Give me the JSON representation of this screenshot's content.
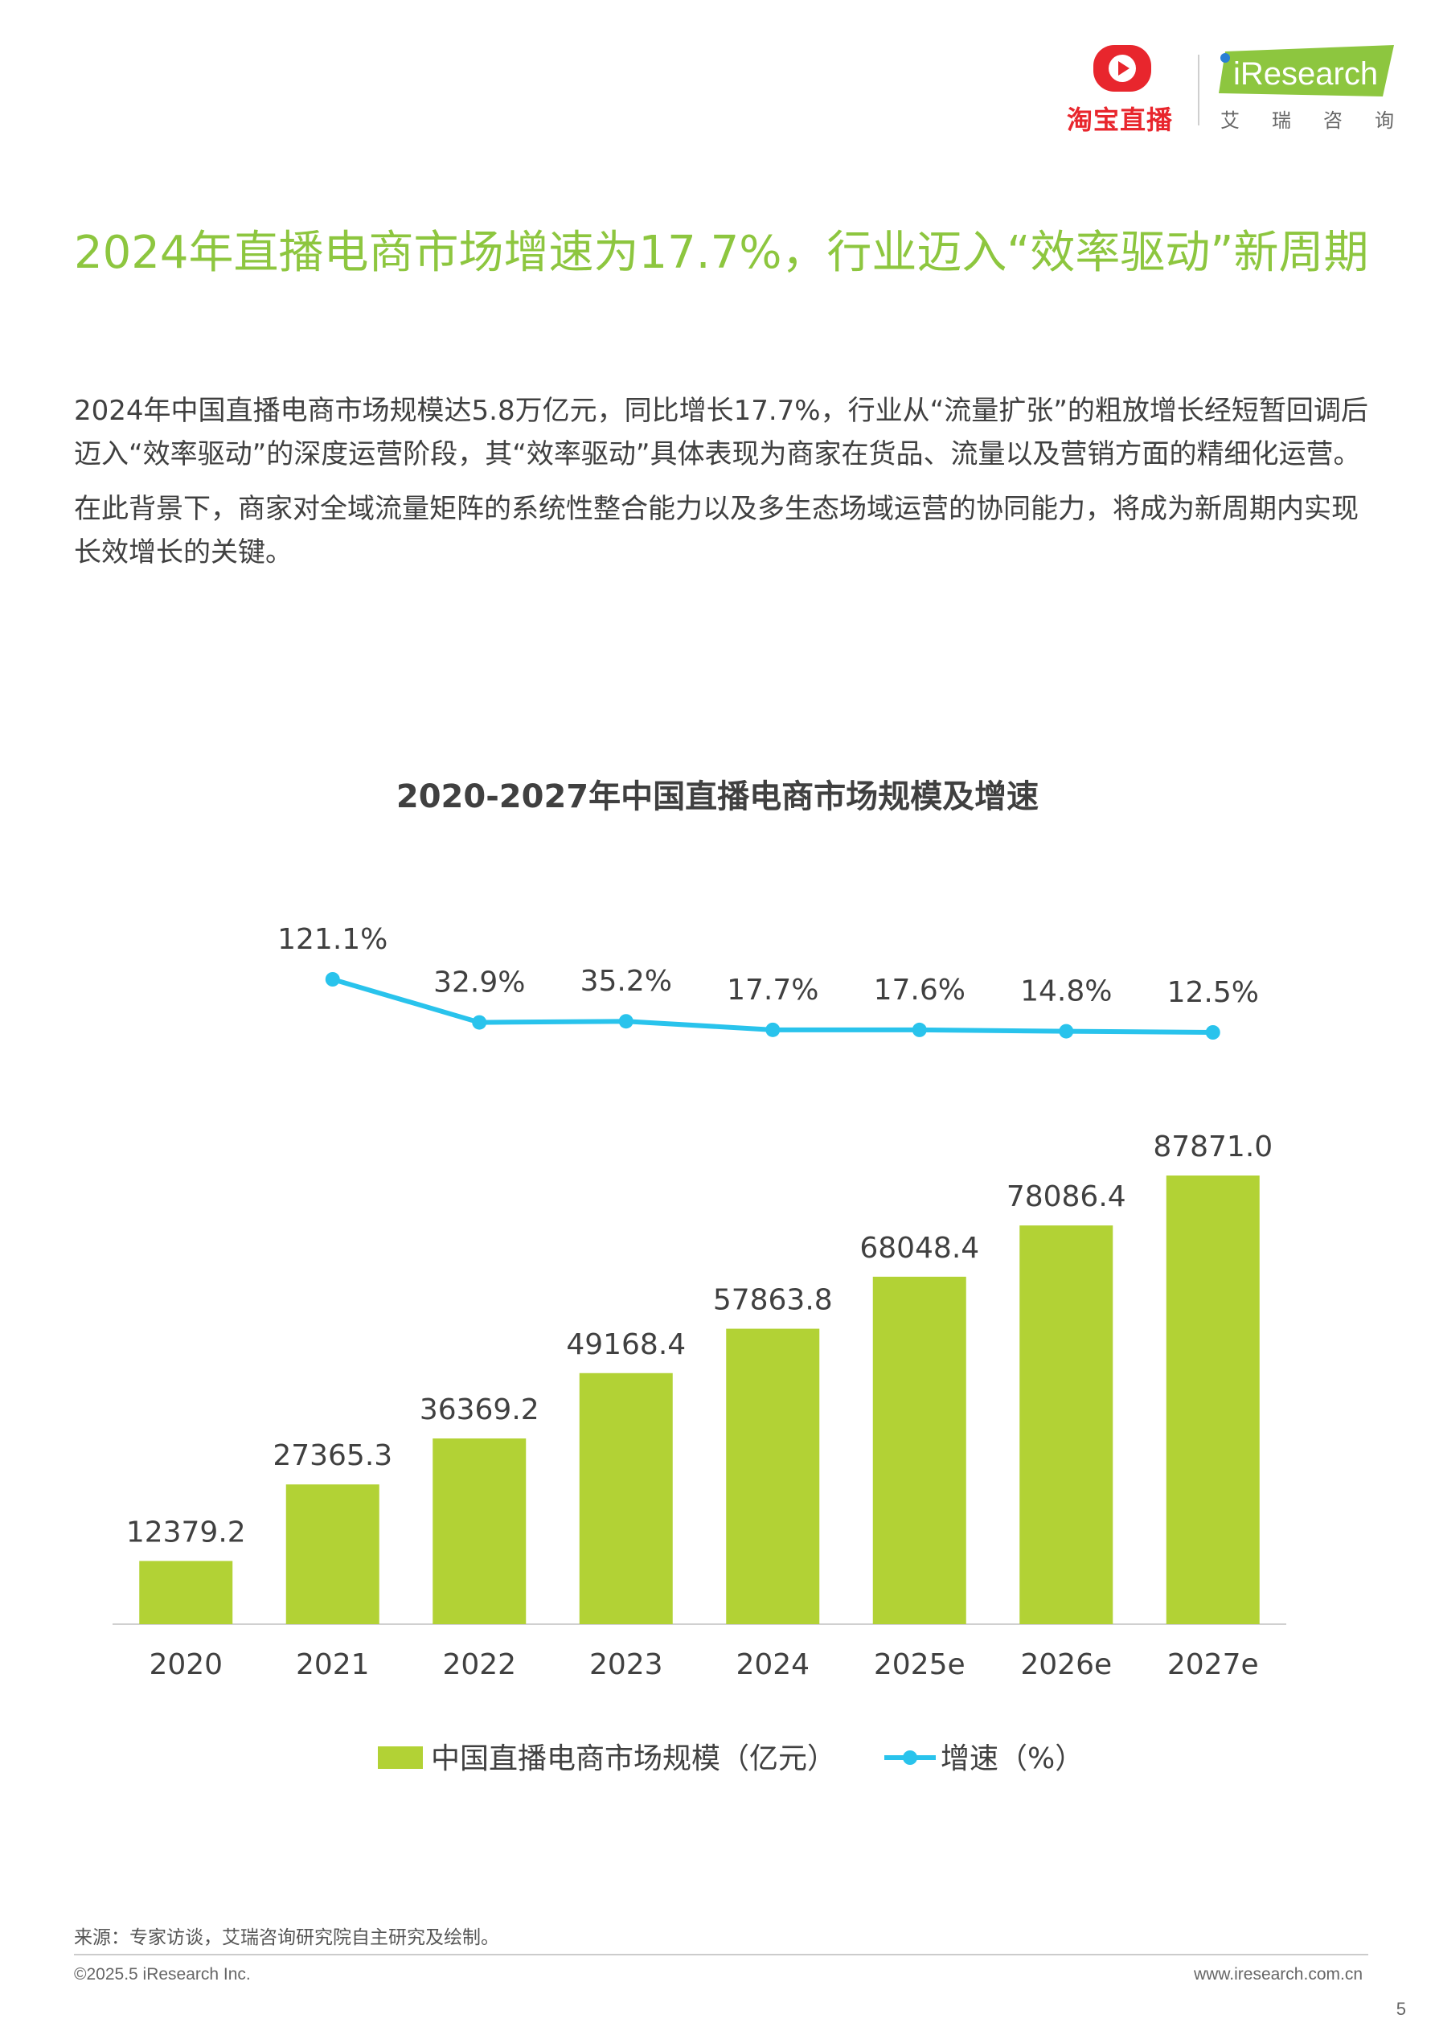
{
  "header": {
    "taobao_logo_text": "淘宝直播",
    "iresearch_logo_text": "iResearch",
    "iresearch_cn_chars": [
      "艾",
      "瑞",
      "咨",
      "询"
    ]
  },
  "title": "2024年直播电商市场增速为17.7%，行业迈入“效率驱动”新周期",
  "paragraphs": [
    "2024年中国直播电商市场规模达5.8万亿元，同比增长17.7%，行业从“流量扩张”的粗放增长经短暂回调后迈入“效率驱动”的深度运营阶段，其“效率驱动”具体表现为商家在货品、流量以及营销方面的精细化运营。",
    "在此背景下，商家对全域流量矩阵的系统性整合能力以及多生态场域运营的协同能力，将成为新周期内实现长效增长的关键。"
  ],
  "chart_data": {
    "type": "bar",
    "title": "2020-2027年中国直播电商市场规模及增速",
    "categories": [
      "2020",
      "2021",
      "2022",
      "2023",
      "2024",
      "2025e",
      "2026e",
      "2027e"
    ],
    "series": [
      {
        "name": "中国直播电商市场规模（亿元）",
        "type": "bar",
        "values": [
          12379.2,
          27365.3,
          36369.2,
          49168.4,
          57863.8,
          68048.4,
          78086.4,
          87871.0
        ],
        "labels": [
          "12379.2",
          "27365.3",
          "36369.2",
          "49168.4",
          "57863.8",
          "68048.4",
          "78086.4",
          "87871.0"
        ],
        "color": "#b2d235"
      },
      {
        "name": "增速（%）",
        "type": "line",
        "values": [
          null,
          121.1,
          32.9,
          35.2,
          17.7,
          17.6,
          14.8,
          12.5
        ],
        "labels": [
          "",
          "121.1%",
          "32.9%",
          "35.2%",
          "17.7%",
          "17.6%",
          "14.8%",
          "12.5%"
        ],
        "color": "#29c3ec"
      }
    ],
    "legend_position": "bottom",
    "grid": false
  },
  "footer": {
    "source": "来源：专家访谈，艾瑞咨询研究院自主研究及绘制。",
    "copyright": "©2025.5 iResearch Inc.",
    "website": "www.iresearch.com.cn",
    "page_number": "5"
  }
}
